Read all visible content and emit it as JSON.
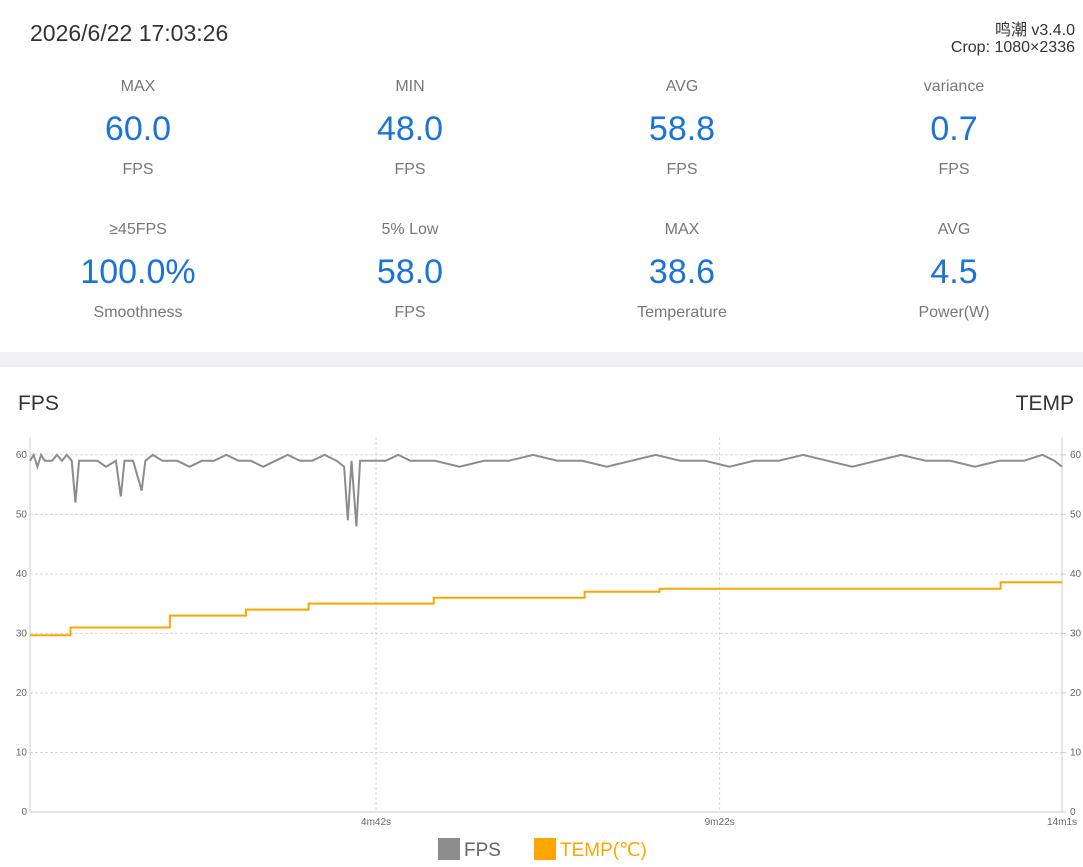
{
  "header": {
    "datetime": "2026/6/22 17:03:26",
    "app": "鸣潮 v3.4.0",
    "crop": "Crop: 1080×2336"
  },
  "stats": [
    {
      "label": "MAX",
      "value": "60.0",
      "unit": "FPS"
    },
    {
      "label": "MIN",
      "value": "48.0",
      "unit": "FPS"
    },
    {
      "label": "AVG",
      "value": "58.8",
      "unit": "FPS"
    },
    {
      "label": "variance",
      "value": "0.7",
      "unit": "FPS"
    },
    {
      "label": "≥45FPS",
      "value": "100.0%",
      "unit": "Smoothness"
    },
    {
      "label": "5% Low",
      "value": "58.0",
      "unit": "FPS"
    },
    {
      "label": "MAX",
      "value": "38.6",
      "unit": "Temperature"
    },
    {
      "label": "AVG",
      "value": "4.5",
      "unit": "Power(W)"
    }
  ],
  "chart_data": {
    "type": "line",
    "ylabel": "FPS",
    "y2label": "TEMP",
    "xlim": [
      0,
      841
    ],
    "xticks": [
      {
        "value": 282,
        "label": "4m42s"
      },
      {
        "value": 562,
        "label": "9m22s"
      },
      {
        "value": 841,
        "label": "14m1s"
      }
    ],
    "ylim": [
      0,
      63
    ],
    "yticks": [
      0,
      10,
      20,
      30,
      40,
      50,
      60
    ],
    "y2lim": [
      0,
      63
    ],
    "y2ticks": [
      0,
      10,
      20,
      30,
      40,
      50,
      60
    ],
    "grid": true,
    "series": [
      {
        "name": "FPS",
        "color": "#8c8c8c",
        "x": [
          0,
          3,
          6,
          9,
          12,
          18,
          22,
          26,
          30,
          34,
          37,
          40,
          48,
          55,
          62,
          70,
          74,
          77,
          84,
          91,
          94,
          100,
          108,
          120,
          130,
          140,
          150,
          160,
          170,
          180,
          190,
          200,
          210,
          220,
          230,
          240,
          250,
          256,
          259,
          262,
          266,
          269,
          275,
          290,
          300,
          310,
          330,
          350,
          370,
          390,
          410,
          430,
          450,
          470,
          490,
          510,
          530,
          550,
          570,
          590,
          610,
          630,
          650,
          670,
          690,
          710,
          730,
          750,
          770,
          790,
          810,
          825,
          835,
          841
        ],
        "values": [
          59,
          60,
          58,
          60,
          59,
          59,
          60,
          59,
          60,
          59,
          52,
          59,
          59,
          59,
          58,
          59,
          53,
          59,
          59,
          54,
          59,
          60,
          59,
          59,
          58,
          59,
          59,
          60,
          59,
          59,
          58,
          59,
          60,
          59,
          59,
          60,
          59,
          58,
          49,
          59,
          48,
          59,
          59,
          59,
          60,
          59,
          59,
          58,
          59,
          59,
          60,
          59,
          59,
          58,
          59,
          60,
          59,
          59,
          58,
          59,
          59,
          60,
          59,
          58,
          59,
          60,
          59,
          59,
          58,
          59,
          59,
          60,
          59,
          58
        ]
      },
      {
        "name": "TEMP(℃)",
        "color": "#ffa500",
        "axis": "y2",
        "step": true,
        "x": [
          0,
          33,
          114,
          176,
          227,
          329,
          452,
          513,
          791,
          841
        ],
        "values": [
          29.7,
          31,
          33,
          34,
          35,
          36,
          37,
          37.5,
          38.6,
          38.6
        ]
      }
    ]
  }
}
